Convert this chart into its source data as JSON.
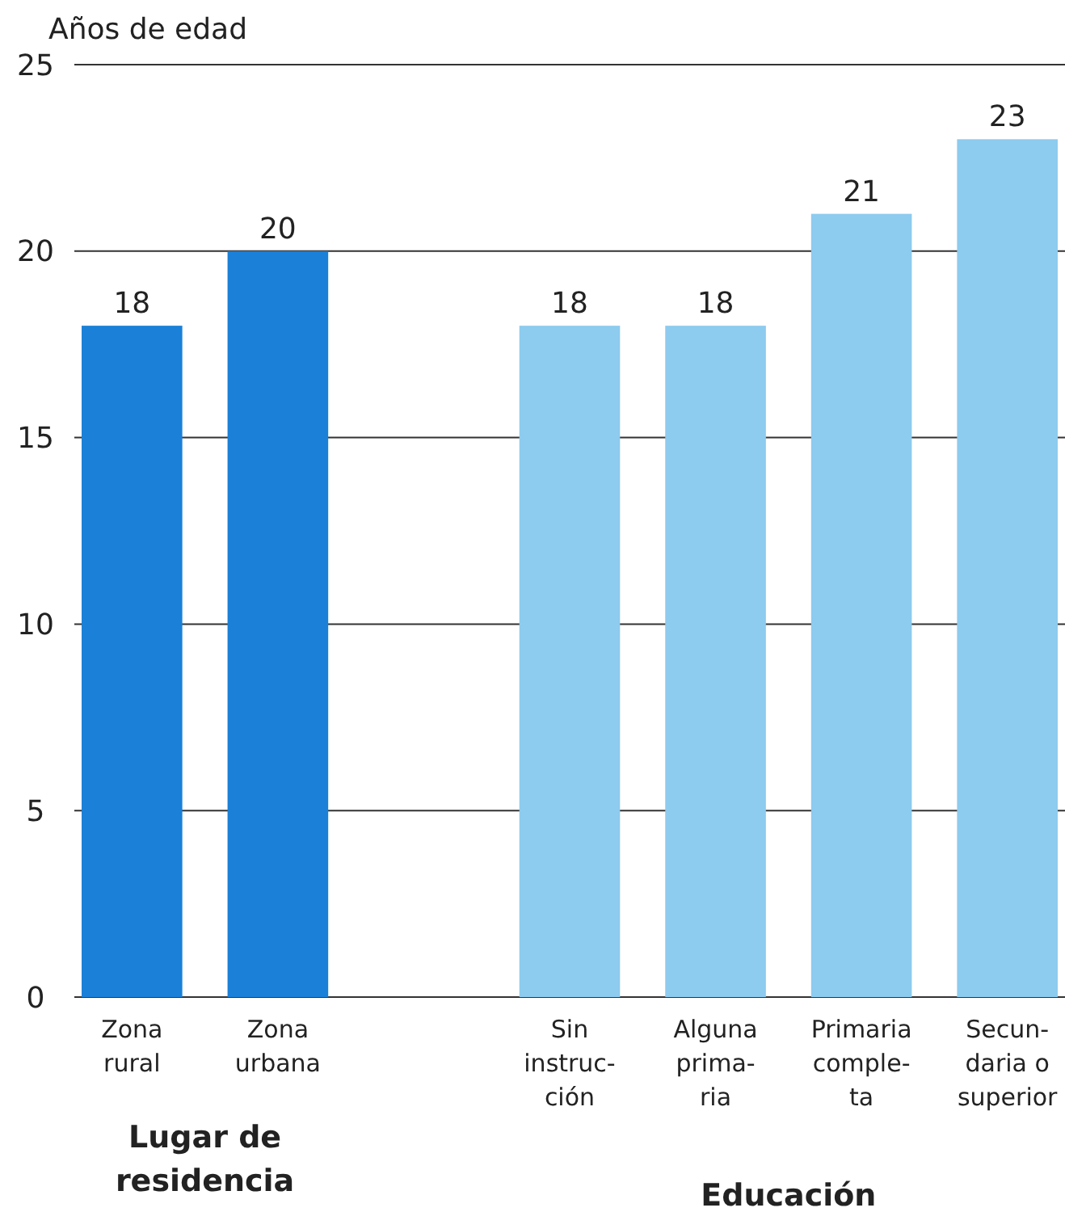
{
  "chart_data": {
    "type": "bar",
    "ylabel": "Años de edad",
    "categories": [
      "Zona\nrural",
      "Zona\nurbana",
      null,
      "Sin\ninstruc-\nción",
      "Alguna\nprima-\nria",
      "Primaria\ncomple-\nta",
      "Secun-\ndaria o\nsuperior"
    ],
    "values": [
      18,
      20,
      null,
      18,
      18,
      21,
      23
    ],
    "colors": [
      "#1a80d8",
      "#1a80d8",
      null,
      "#8dcbef",
      "#8dcbef",
      "#8dcbef",
      "#8dcbef"
    ],
    "ylim": [
      0,
      25
    ],
    "yticks": [
      0,
      5,
      10,
      15,
      20,
      25
    ],
    "grid": "y",
    "data_labels": true,
    "annotations": [
      "Lugar de\nresidencia",
      "Educación"
    ]
  }
}
